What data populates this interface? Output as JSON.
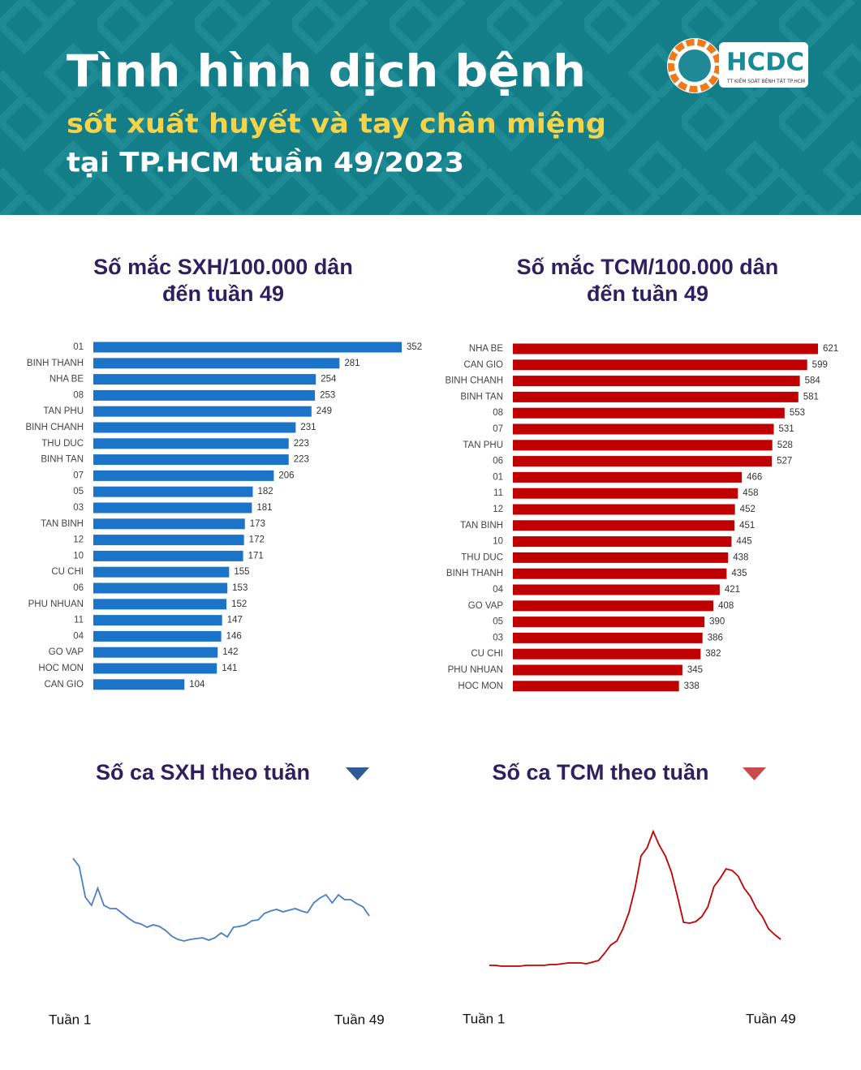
{
  "header": {
    "title": "Tình hình dịch bệnh",
    "subtitle": "sốt xuất huyết và tay chân miệng",
    "subtitle2": "tại TP.HCM tuần 49/2023",
    "logo": "HCDC",
    "logo_caption": "TT KIỂM SOÁT BỆNH TẬT TP.HCM"
  },
  "chart_data": [
    {
      "type": "barh",
      "title": [
        "Số mắc SXH/100.000 dân",
        "đến tuần 49"
      ],
      "color": "#1b74c8",
      "categories": [
        "01",
        "BINH THANH",
        "NHA BE",
        "08",
        "TAN PHU",
        "BINH CHANH",
        "THU DUC",
        "BINH TAN",
        "07",
        "05",
        "03",
        "TAN BINH",
        "12",
        "10",
        "CU CHI",
        "06",
        "PHU NHUAN",
        "11",
        "04",
        "GO VAP",
        "HOC MON",
        "CAN GIO"
      ],
      "values": [
        352,
        281,
        254,
        253,
        249,
        231,
        223,
        223,
        206,
        182,
        181,
        173,
        172,
        171,
        155,
        153,
        152,
        147,
        146,
        142,
        141,
        104
      ]
    },
    {
      "type": "barh",
      "title": [
        "Số mắc TCM/100.000 dân",
        "đến tuần 49"
      ],
      "color": "#c00000",
      "categories": [
        "NHA BE",
        "CAN GIO",
        "BINH CHANH",
        "BINH TAN",
        "08",
        "07",
        "TAN PHU",
        "06",
        "01",
        "11",
        "12",
        "TAN BINH",
        "10",
        "THU DUC",
        "BINH THANH",
        "04",
        "GO VAP",
        "05",
        "03",
        "CU CHI",
        "PHU NHUAN",
        "HOC MON"
      ],
      "values": [
        621,
        599,
        584,
        581,
        553,
        531,
        528,
        527,
        466,
        458,
        452,
        451,
        445,
        438,
        435,
        421,
        408,
        390,
        386,
        382,
        345,
        338
      ]
    },
    {
      "type": "line",
      "title": [
        "Số ca SXH theo tuần"
      ],
      "color": "#4a7fc1",
      "categories": [
        "Tuần 1",
        null,
        null,
        null,
        null,
        null,
        null,
        null,
        null,
        null,
        null,
        null,
        null,
        null,
        null,
        null,
        null,
        null,
        null,
        null,
        null,
        null,
        null,
        null,
        null,
        null,
        null,
        null,
        null,
        null,
        null,
        null,
        null,
        null,
        null,
        null,
        null,
        null,
        null,
        null,
        null,
        null,
        null,
        null,
        null,
        null,
        null,
        null,
        "Tuần 49"
      ],
      "values": [
        142,
        132,
        94,
        84,
        105,
        84,
        80,
        80,
        74,
        68,
        63,
        61,
        57,
        60,
        58,
        53,
        46,
        42,
        40,
        42,
        43,
        44,
        41,
        44,
        50,
        45,
        57,
        58,
        60,
        65,
        66,
        74,
        77,
        79,
        76,
        78,
        80,
        77,
        75,
        87,
        93,
        97,
        87,
        97,
        91,
        91,
        86,
        82,
        71
      ]
    },
    {
      "type": "line",
      "title": [
        "Số ca TCM theo tuần"
      ],
      "color": "#c00000",
      "categories": [
        "Tuần 1",
        null,
        null,
        null,
        null,
        null,
        null,
        null,
        null,
        null,
        null,
        null,
        null,
        null,
        null,
        null,
        null,
        null,
        null,
        null,
        null,
        null,
        null,
        null,
        null,
        null,
        null,
        null,
        null,
        null,
        null,
        null,
        null,
        null,
        null,
        null,
        null,
        null,
        null,
        null,
        null,
        null,
        null,
        null,
        null,
        null,
        null,
        null,
        "Tuần 49"
      ],
      "values": [
        10,
        10,
        9,
        9,
        9,
        9,
        10,
        10,
        10,
        10,
        11,
        11,
        12,
        13,
        13,
        13,
        12,
        14,
        16,
        25,
        35,
        40,
        55,
        75,
        105,
        145,
        155,
        175,
        158,
        145,
        125,
        95,
        63,
        62,
        64,
        70,
        82,
        107,
        117,
        129,
        127,
        120,
        105,
        95,
        80,
        70,
        55,
        48,
        42
      ]
    }
  ]
}
